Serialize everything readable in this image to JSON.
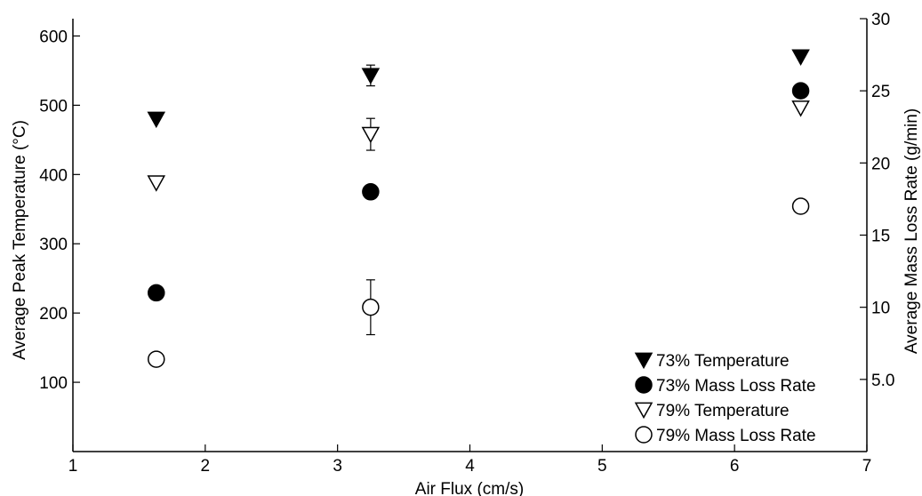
{
  "chart_data": {
    "type": "scatter",
    "xlabel": "Air Flux (cm/s)",
    "ylabel": "Average Peak Temperature (°C)",
    "y2label": "Average Mass Loss Rate (g/min)",
    "xlim": [
      1,
      7
    ],
    "ylim": [
      0,
      625
    ],
    "y2lim": [
      0,
      30
    ],
    "x_ticks": [
      1,
      2,
      3,
      4,
      5,
      6,
      7
    ],
    "x_tick_labels": [
      "1",
      "2",
      "3",
      "4",
      "5",
      "6",
      "7"
    ],
    "y_ticks": [
      100,
      200,
      300,
      400,
      500,
      600
    ],
    "y_tick_labels": [
      "100",
      "200",
      "300",
      "400",
      "500",
      "600"
    ],
    "y2_ticks": [
      5,
      10,
      15,
      20,
      25,
      30
    ],
    "y2_tick_labels": [
      "5.0",
      "10",
      "15",
      "20",
      "25",
      "30"
    ],
    "grid": false,
    "legend_position": "bottom-right",
    "series": [
      {
        "name": "73% Temperature",
        "axis": "left",
        "marker": "triangle-down-filled",
        "x": [
          1.63,
          3.25,
          6.5
        ],
        "y": [
          480,
          543,
          570
        ],
        "err": [
          0,
          15,
          0
        ]
      },
      {
        "name": "73% Mass Loss Rate",
        "axis": "right",
        "marker": "circle-filled",
        "x": [
          1.63,
          3.25,
          6.5
        ],
        "y": [
          11,
          18,
          25
        ]
      },
      {
        "name": "79% Temperature",
        "axis": "left",
        "marker": "triangle-down-open",
        "x": [
          1.63,
          3.25,
          6.5
        ],
        "y": [
          388,
          458,
          496
        ],
        "err": [
          0,
          23,
          0
        ]
      },
      {
        "name": "79% Mass Loss Rate",
        "axis": "right",
        "marker": "circle-open",
        "x": [
          1.63,
          3.25,
          6.5
        ],
        "y": [
          6.4,
          10,
          17
        ],
        "err": [
          0,
          1.9,
          0
        ]
      }
    ]
  }
}
